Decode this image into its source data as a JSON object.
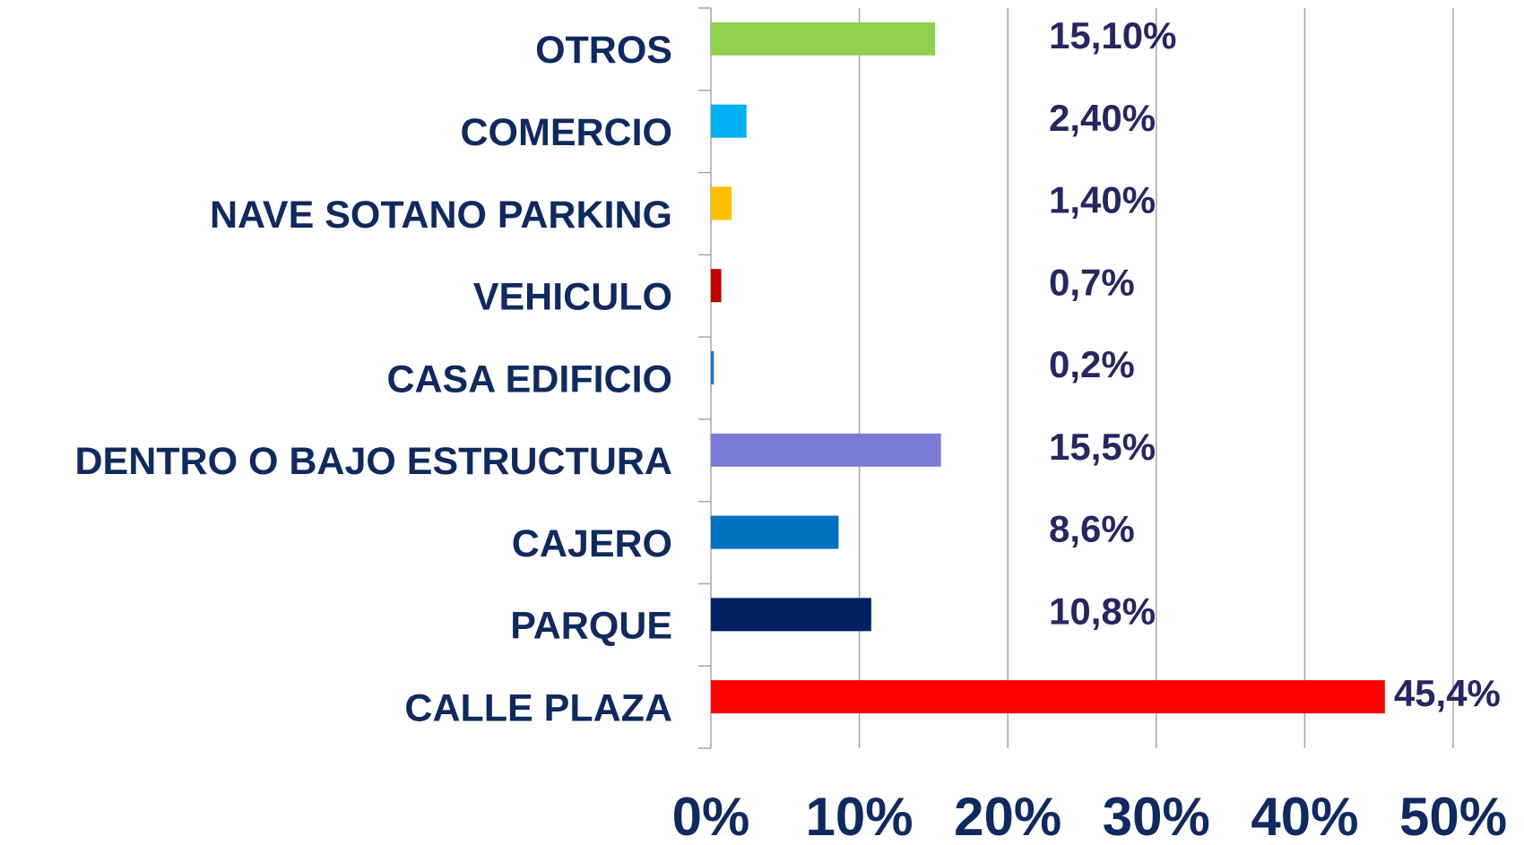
{
  "chart_data": {
    "type": "bar",
    "orientation": "horizontal",
    "categories": [
      "OTROS",
      "COMERCIO",
      "NAVE SOTANO PARKING",
      "VEHICULO",
      "CASA EDIFICIO",
      "DENTRO O BAJO ESTRUCTURA",
      "CAJERO",
      "PARQUE",
      "CALLE PLAZA"
    ],
    "values": [
      15.1,
      2.4,
      1.4,
      0.7,
      0.2,
      15.5,
      8.6,
      10.8,
      45.4
    ],
    "value_labels": [
      "15,10%",
      "2,40%",
      "1,40%",
      "0,7%",
      "0,2%",
      "15,5%",
      "8,6%",
      "10,8%",
      "45,4%"
    ],
    "colors": [
      "#92d050",
      "#00b0f0",
      "#ffc000",
      "#c00000",
      "#1f77b4",
      "#7b7bd6",
      "#0070c0",
      "#002060",
      "#ff0000"
    ],
    "xlim": [
      0,
      50
    ],
    "xticks": [
      {
        "value": 0,
        "label": "0%"
      },
      {
        "value": 10,
        "label": "10%"
      },
      {
        "value": 20,
        "label": "20%"
      },
      {
        "value": 30,
        "label": "30%"
      },
      {
        "value": 40,
        "label": "40%"
      },
      {
        "value": 50,
        "label": "50%"
      }
    ],
    "grid": true
  }
}
